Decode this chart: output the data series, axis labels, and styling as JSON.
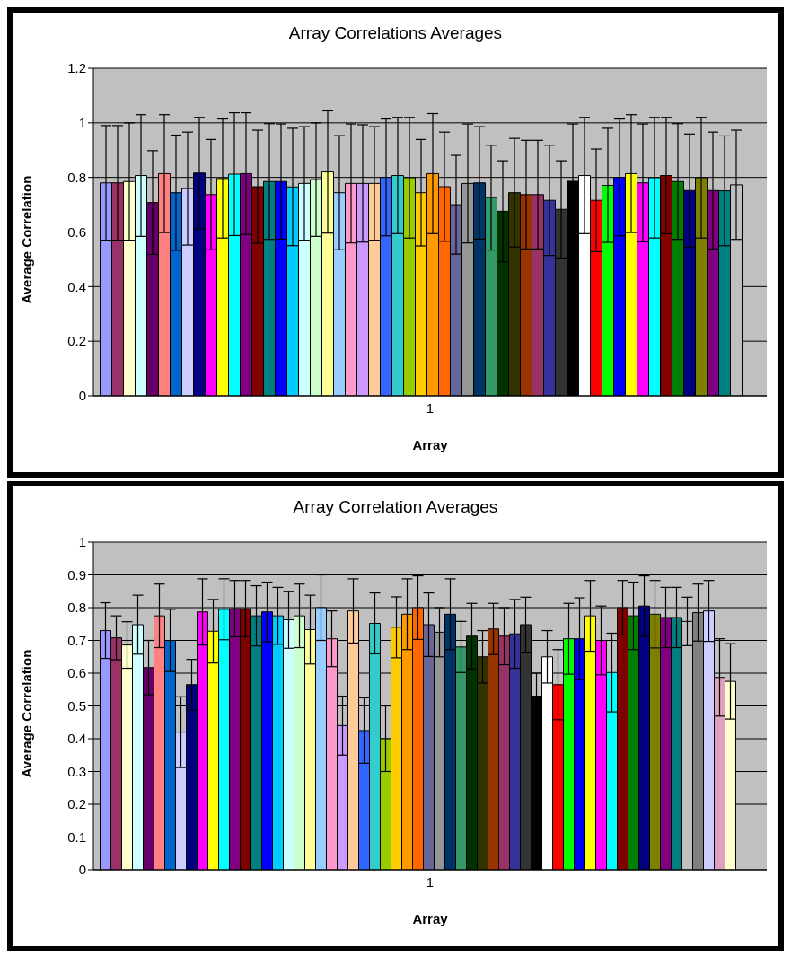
{
  "chart_data": [
    {
      "type": "bar",
      "title": "Array Correlations Averages",
      "xlabel": "Array",
      "ylabel": "Average Correlation",
      "categories": [
        "1"
      ],
      "ylim": [
        0,
        1.2
      ],
      "yticks": [
        0,
        0.2,
        0.4,
        0.6,
        0.8,
        1,
        1.2
      ],
      "grid": "y",
      "legend": false,
      "series": [
        {
          "color": "#9999ff",
          "values": [
            0.78
          ],
          "errors": [
            0.21
          ]
        },
        {
          "color": "#993366",
          "values": [
            0.78
          ],
          "errors": [
            0.21
          ]
        },
        {
          "color": "#ffffcc",
          "values": [
            0.785
          ],
          "errors": [
            0.215
          ]
        },
        {
          "color": "#ccffff",
          "values": [
            0.807
          ],
          "errors": [
            0.223
          ]
        },
        {
          "color": "#660066",
          "values": [
            0.708
          ],
          "errors": [
            0.19
          ]
        },
        {
          "color": "#ff8080",
          "values": [
            0.814
          ],
          "errors": [
            0.216
          ]
        },
        {
          "color": "#0066cc",
          "values": [
            0.744
          ],
          "errors": [
            0.211
          ]
        },
        {
          "color": "#ccccff",
          "values": [
            0.759
          ],
          "errors": [
            0.207
          ]
        },
        {
          "color": "#000080",
          "values": [
            0.816
          ],
          "errors": [
            0.204
          ]
        },
        {
          "color": "#ff00ff",
          "values": [
            0.737
          ],
          "errors": [
            0.202
          ]
        },
        {
          "color": "#ffff00",
          "values": [
            0.796
          ],
          "errors": [
            0.218
          ]
        },
        {
          "color": "#00ffff",
          "values": [
            0.812
          ],
          "errors": [
            0.225
          ]
        },
        {
          "color": "#800080",
          "values": [
            0.814
          ],
          "errors": [
            0.223
          ]
        },
        {
          "color": "#800000",
          "values": [
            0.766
          ],
          "errors": [
            0.207
          ]
        },
        {
          "color": "#008080",
          "values": [
            0.785
          ],
          "errors": [
            0.212
          ]
        },
        {
          "color": "#0000ff",
          "values": [
            0.785
          ],
          "errors": [
            0.211
          ]
        },
        {
          "color": "#00ccff",
          "values": [
            0.765
          ],
          "errors": [
            0.215
          ]
        },
        {
          "color": "#ccffff",
          "values": [
            0.778
          ],
          "errors": [
            0.208
          ]
        },
        {
          "color": "#ccffcc",
          "values": [
            0.792
          ],
          "errors": [
            0.208
          ]
        },
        {
          "color": "#ffff99",
          "values": [
            0.82
          ],
          "errors": [
            0.224
          ]
        },
        {
          "color": "#99ccff",
          "values": [
            0.744
          ],
          "errors": [
            0.209
          ]
        },
        {
          "color": "#ff99cc",
          "values": [
            0.778
          ],
          "errors": [
            0.218
          ]
        },
        {
          "color": "#cc99ff",
          "values": [
            0.778
          ],
          "errors": [
            0.215
          ]
        },
        {
          "color": "#ffcc99",
          "values": [
            0.778
          ],
          "errors": [
            0.208
          ]
        },
        {
          "color": "#3366ff",
          "values": [
            0.8
          ],
          "errors": [
            0.214
          ]
        },
        {
          "color": "#33cccc",
          "values": [
            0.807
          ],
          "errors": [
            0.213
          ]
        },
        {
          "color": "#99cc00",
          "values": [
            0.799
          ],
          "errors": [
            0.221
          ]
        },
        {
          "color": "#ffcc00",
          "values": [
            0.744
          ],
          "errors": [
            0.195
          ]
        },
        {
          "color": "#ff9900",
          "values": [
            0.814
          ],
          "errors": [
            0.22
          ]
        },
        {
          "color": "#ff6600",
          "values": [
            0.766
          ],
          "errors": [
            0.2
          ]
        },
        {
          "color": "#666699",
          "values": [
            0.7
          ],
          "errors": [
            0.181
          ]
        },
        {
          "color": "#969696",
          "values": [
            0.778
          ],
          "errors": [
            0.218
          ]
        },
        {
          "color": "#003366",
          "values": [
            0.78
          ],
          "errors": [
            0.206
          ]
        },
        {
          "color": "#339966",
          "values": [
            0.726
          ],
          "errors": [
            0.192
          ]
        },
        {
          "color": "#003300",
          "values": [
            0.676
          ],
          "errors": [
            0.185
          ]
        },
        {
          "color": "#333300",
          "values": [
            0.744
          ],
          "errors": [
            0.199
          ]
        },
        {
          "color": "#993300",
          "values": [
            0.737
          ],
          "errors": [
            0.199
          ]
        },
        {
          "color": "#993366",
          "values": [
            0.737
          ],
          "errors": [
            0.199
          ]
        },
        {
          "color": "#333399",
          "values": [
            0.716
          ],
          "errors": [
            0.202
          ]
        },
        {
          "color": "#333333",
          "values": [
            0.683
          ],
          "errors": [
            0.178
          ]
        },
        {
          "color": "#000000",
          "values": [
            0.786
          ],
          "errors": [
            0.21
          ]
        },
        {
          "color": "#ffffff",
          "values": [
            0.807
          ],
          "errors": [
            0.213
          ]
        },
        {
          "color": "#ff0000",
          "values": [
            0.716
          ],
          "errors": [
            0.188
          ]
        },
        {
          "color": "#00ff00",
          "values": [
            0.771
          ],
          "errors": [
            0.209
          ]
        },
        {
          "color": "#0000ff",
          "values": [
            0.8
          ],
          "errors": [
            0.214
          ]
        },
        {
          "color": "#ffff00",
          "values": [
            0.814
          ],
          "errors": [
            0.216
          ]
        },
        {
          "color": "#ff00ff",
          "values": [
            0.78
          ],
          "errors": [
            0.216
          ]
        },
        {
          "color": "#00ffff",
          "values": [
            0.799
          ],
          "errors": [
            0.221
          ]
        },
        {
          "color": "#800000",
          "values": [
            0.807
          ],
          "errors": [
            0.213
          ]
        },
        {
          "color": "#008000",
          "values": [
            0.785
          ],
          "errors": [
            0.212
          ]
        },
        {
          "color": "#000080",
          "values": [
            0.752
          ],
          "errors": [
            0.207
          ]
        },
        {
          "color": "#808000",
          "values": [
            0.799
          ],
          "errors": [
            0.221
          ]
        },
        {
          "color": "#800080",
          "values": [
            0.752
          ],
          "errors": [
            0.214
          ]
        },
        {
          "color": "#008080",
          "values": [
            0.751
          ],
          "errors": [
            0.201
          ]
        },
        {
          "color": "#c0c0c0",
          "values": [
            0.773
          ],
          "errors": [
            0.2
          ]
        }
      ]
    },
    {
      "type": "bar",
      "title": "Array Correlation Averages",
      "xlabel": "Array",
      "ylabel": "Average Correlation",
      "categories": [
        "1"
      ],
      "ylim": [
        0,
        1
      ],
      "yticks": [
        0,
        0.1,
        0.2,
        0.3,
        0.4,
        0.5,
        0.6,
        0.7,
        0.8,
        0.9,
        1
      ],
      "grid": "y",
      "legend": false,
      "series": [
        {
          "color": "#9999ff",
          "values": [
            0.73
          ],
          "errors": [
            0.085
          ]
        },
        {
          "color": "#993366",
          "values": [
            0.708
          ],
          "errors": [
            0.067
          ]
        },
        {
          "color": "#ffffcc",
          "values": [
            0.686
          ],
          "errors": [
            0.071
          ]
        },
        {
          "color": "#ccffff",
          "values": [
            0.748
          ],
          "errors": [
            0.09
          ]
        },
        {
          "color": "#660066",
          "values": [
            0.617
          ],
          "errors": [
            0.083
          ]
        },
        {
          "color": "#ff8080",
          "values": [
            0.775
          ],
          "errors": [
            0.097
          ]
        },
        {
          "color": "#0066cc",
          "values": [
            0.7
          ],
          "errors": [
            0.095
          ]
        },
        {
          "color": "#ccccff",
          "values": [
            0.42
          ],
          "errors": [
            0.108
          ]
        },
        {
          "color": "#000080",
          "values": [
            0.565
          ],
          "errors": [
            0.077
          ]
        },
        {
          "color": "#ff00ff",
          "values": [
            0.787
          ],
          "errors": [
            0.101
          ]
        },
        {
          "color": "#ffff00",
          "values": [
            0.728
          ],
          "errors": [
            0.097
          ]
        },
        {
          "color": "#00ffff",
          "values": [
            0.795
          ],
          "errors": [
            0.093
          ]
        },
        {
          "color": "#800080",
          "values": [
            0.797
          ],
          "errors": [
            0.086
          ]
        },
        {
          "color": "#800000",
          "values": [
            0.797
          ],
          "errors": [
            0.086
          ]
        },
        {
          "color": "#008080",
          "values": [
            0.775
          ],
          "errors": [
            0.092
          ]
        },
        {
          "color": "#0000ff",
          "values": [
            0.787
          ],
          "errors": [
            0.091
          ]
        },
        {
          "color": "#00ccff",
          "values": [
            0.775
          ],
          "errors": [
            0.087
          ]
        },
        {
          "color": "#ccffff",
          "values": [
            0.763
          ],
          "errors": [
            0.087
          ]
        },
        {
          "color": "#ccffcc",
          "values": [
            0.775
          ],
          "errors": [
            0.097
          ]
        },
        {
          "color": "#ffff99",
          "values": [
            0.733
          ],
          "errors": [
            0.105
          ]
        },
        {
          "color": "#99ccff",
          "values": [
            0.8
          ],
          "errors": [
            0.1
          ]
        },
        {
          "color": "#ff99cc",
          "values": [
            0.705
          ],
          "errors": [
            0.085
          ]
        },
        {
          "color": "#cc99ff",
          "values": [
            0.44
          ],
          "errors": [
            0.09
          ]
        },
        {
          "color": "#ffcc99",
          "values": [
            0.79
          ],
          "errors": [
            0.098
          ]
        },
        {
          "color": "#3366ff",
          "values": [
            0.425
          ],
          "errors": [
            0.1
          ]
        },
        {
          "color": "#33cccc",
          "values": [
            0.752
          ],
          "errors": [
            0.093
          ]
        },
        {
          "color": "#99cc00",
          "values": [
            0.4
          ],
          "errors": [
            0.1
          ]
        },
        {
          "color": "#ffcc00",
          "values": [
            0.74
          ],
          "errors": [
            0.093
          ]
        },
        {
          "color": "#ff9900",
          "values": [
            0.78
          ],
          "errors": [
            0.108
          ]
        },
        {
          "color": "#ff6600",
          "values": [
            0.8
          ],
          "errors": [
            0.097
          ]
        },
        {
          "color": "#666699",
          "values": [
            0.748
          ],
          "errors": [
            0.097
          ]
        },
        {
          "color": "#969696",
          "values": [
            0.725
          ],
          "errors": [
            0.075
          ]
        },
        {
          "color": "#003366",
          "values": [
            0.78
          ],
          "errors": [
            0.108
          ]
        },
        {
          "color": "#339966",
          "values": [
            0.68
          ],
          "errors": [
            0.078
          ]
        },
        {
          "color": "#003300",
          "values": [
            0.713
          ],
          "errors": [
            0.1
          ]
        },
        {
          "color": "#333300",
          "values": [
            0.65
          ],
          "errors": [
            0.08
          ]
        },
        {
          "color": "#993300",
          "values": [
            0.735
          ],
          "errors": [
            0.078
          ]
        },
        {
          "color": "#993366",
          "values": [
            0.713
          ],
          "errors": [
            0.087
          ]
        },
        {
          "color": "#333399",
          "values": [
            0.72
          ],
          "errors": [
            0.105
          ]
        },
        {
          "color": "#333333",
          "values": [
            0.748
          ],
          "errors": [
            0.084
          ]
        },
        {
          "color": "#000000",
          "values": [
            0.53
          ],
          "errors": [
            0.07
          ]
        },
        {
          "color": "#ffffff",
          "values": [
            0.65
          ],
          "errors": [
            0.08
          ]
        },
        {
          "color": "#ff0000",
          "values": [
            0.565
          ],
          "errors": [
            0.107
          ]
        },
        {
          "color": "#00ff00",
          "values": [
            0.705
          ],
          "errors": [
            0.108
          ]
        },
        {
          "color": "#0000ff",
          "values": [
            0.705
          ],
          "errors": [
            0.125
          ]
        },
        {
          "color": "#ffff00",
          "values": [
            0.775
          ],
          "errors": [
            0.108
          ]
        },
        {
          "color": "#ff00ff",
          "values": [
            0.7
          ],
          "errors": [
            0.105
          ]
        },
        {
          "color": "#00ffff",
          "values": [
            0.602
          ],
          "errors": [
            0.12
          ]
        },
        {
          "color": "#800000",
          "values": [
            0.8
          ],
          "errors": [
            0.083
          ]
        },
        {
          "color": "#008000",
          "values": [
            0.775
          ],
          "errors": [
            0.103
          ]
        },
        {
          "color": "#000080",
          "values": [
            0.805
          ],
          "errors": [
            0.092
          ]
        },
        {
          "color": "#808000",
          "values": [
            0.78
          ],
          "errors": [
            0.103
          ]
        },
        {
          "color": "#800080",
          "values": [
            0.77
          ],
          "errors": [
            0.092
          ]
        },
        {
          "color": "#008080",
          "values": [
            0.77
          ],
          "errors": [
            0.092
          ]
        },
        {
          "color": "#c0c0c0",
          "values": [
            0.758
          ],
          "errors": [
            0.074
          ]
        },
        {
          "color": "#808080",
          "values": [
            0.785
          ],
          "errors": [
            0.087
          ]
        },
        {
          "color": "#ccccff",
          "values": [
            0.79
          ],
          "errors": [
            0.093
          ]
        },
        {
          "color": "#e0a0c0",
          "values": [
            0.587
          ],
          "errors": [
            0.118
          ]
        },
        {
          "color": "#ffffcc",
          "values": [
            0.575
          ],
          "errors": [
            0.115
          ]
        }
      ]
    }
  ]
}
